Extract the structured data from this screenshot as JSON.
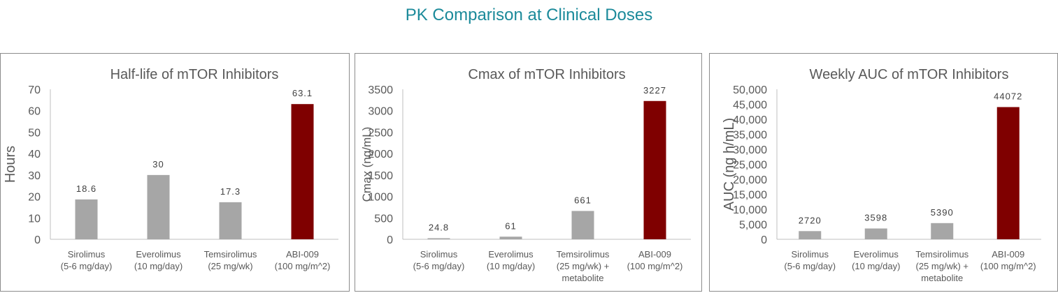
{
  "page_title": "PK Comparison at Clinical Doses",
  "colors": {
    "title": "#1b8a9a",
    "bar_default": "#a6a6a6",
    "bar_highlight": "#7f0000",
    "text": "#595959"
  },
  "chart_data": [
    {
      "type": "bar",
      "title": "Half-life of mTOR Inhibitors",
      "ylabel": "Hours",
      "xlabel": "",
      "categories": [
        [
          "Sirolimus",
          "(5-6 mg/day)"
        ],
        [
          "Everolimus",
          "(10 mg/day)"
        ],
        [
          "Temsirolimus",
          "(25 mg/wk)"
        ],
        [
          "ABI-009",
          "(100 mg/m^2)"
        ]
      ],
      "values": [
        18.6,
        30,
        17.3,
        63.1
      ],
      "data_labels": [
        "18.6",
        "30",
        "17.3",
        "63.1"
      ],
      "highlight_index": 3,
      "ylim": [
        0,
        70
      ],
      "yticks": [
        "0",
        "10",
        "20",
        "30",
        "40",
        "50",
        "60",
        "70"
      ],
      "grid": false
    },
    {
      "type": "bar",
      "title": "Cmax of mTOR Inhibitors",
      "ylabel": "Cmax (ng/mL)",
      "xlabel": "",
      "categories": [
        [
          "Sirolimus",
          "(5-6 mg/day)"
        ],
        [
          "Everolimus",
          "(10 mg/day)"
        ],
        [
          "Temsirolimus",
          "(25 mg/wk) +",
          "metabolite"
        ],
        [
          "ABI-009",
          "(100 mg/m^2)"
        ]
      ],
      "values": [
        24.8,
        61,
        661,
        3227
      ],
      "data_labels": [
        "24.8",
        "61",
        "661",
        "3227"
      ],
      "highlight_index": 3,
      "ylim": [
        0,
        3500
      ],
      "yticks": [
        "0",
        "500",
        "1000",
        "1500",
        "2000",
        "2500",
        "3000",
        "3500"
      ],
      "grid": false
    },
    {
      "type": "bar",
      "title": "Weekly AUC of mTOR Inhibitors",
      "ylabel": "AUC (ng h/mL)",
      "xlabel": "",
      "categories": [
        [
          "Sirolimus",
          "(5-6 mg/day)"
        ],
        [
          "Everolimus",
          "(10 mg/day)"
        ],
        [
          "Temsirolimus",
          "(25 mg/wk) +",
          "metabolite"
        ],
        [
          "ABI-009",
          "(100 mg/m^2)"
        ]
      ],
      "values": [
        2720,
        3598,
        5390,
        44072
      ],
      "data_labels": [
        "2720",
        "3598",
        "5390",
        "44072"
      ],
      "highlight_index": 3,
      "ylim": [
        0,
        50000
      ],
      "yticks": [
        "0",
        "5,000",
        "10,000",
        "15,000",
        "20,000",
        "25,000",
        "30,000",
        "35,000",
        "40,000",
        "45,000",
        "50,000"
      ],
      "grid": false
    }
  ]
}
